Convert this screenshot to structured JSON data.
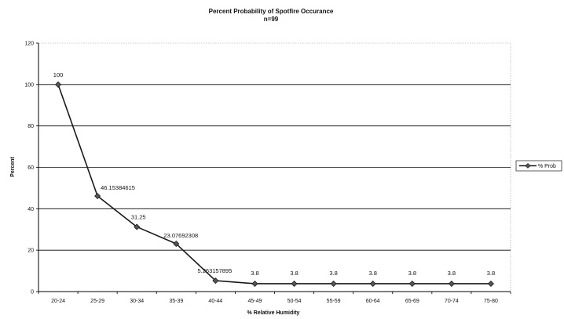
{
  "chart_data": {
    "type": "line",
    "title": "Percent Probability of Spotfire Occurance",
    "subtitle": "n=99",
    "xlabel": "% Relative Humidity",
    "ylabel": "Percent",
    "ylim": [
      0,
      120
    ],
    "yticks": [
      "0",
      "20",
      "40",
      "60",
      "80",
      "100",
      "120"
    ],
    "grid": true,
    "legend_position": "right",
    "categories": [
      "20-24",
      "25-29",
      "30-34",
      "35-39",
      "40-44",
      "45-49",
      "50-54",
      "55-59",
      "60-64",
      "65-69",
      "70-74",
      "75-80"
    ],
    "series": [
      {
        "name": "% Prob",
        "color": "#1a1a1a",
        "values": [
          100,
          46.15384615,
          31.25,
          23.07692308,
          5.263157895,
          3.8,
          3.8,
          3.8,
          3.8,
          3.8,
          3.8,
          3.8
        ],
        "labels": [
          "100",
          "46.15384615",
          "31.25",
          "23.07692308",
          "5.263157895",
          "3.8",
          "3.8",
          "3.8",
          "3.8",
          "3.8",
          "3.8",
          "3.8"
        ]
      }
    ]
  }
}
